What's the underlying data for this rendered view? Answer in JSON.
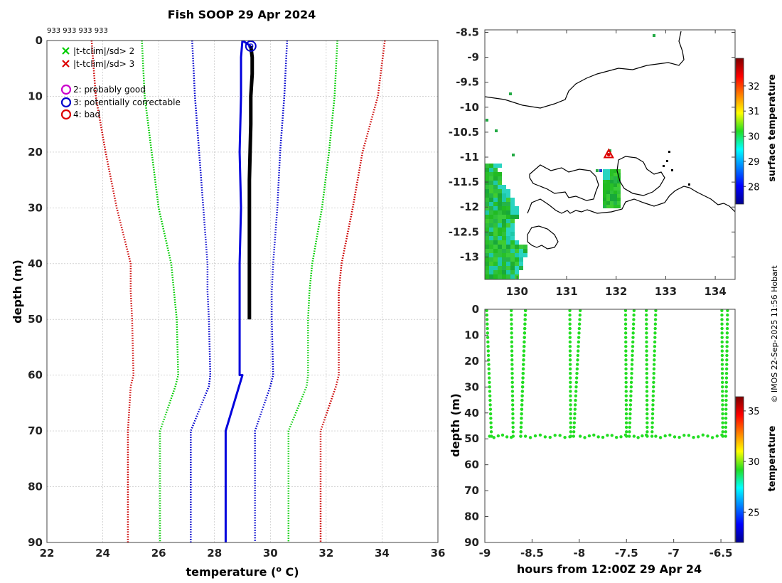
{
  "title": "Fish SOOP 29 Apr 2024",
  "id_label": "933 933 933 933",
  "copyright": "© IMOS 22-Sep-2025 11:56 Hobart",
  "colors": {
    "profile": "#000000",
    "clim_mean": "#0000dd",
    "sd1": "#0000cc",
    "sd2": "#00cc00",
    "sd3": "#cc0000",
    "flag_green": "#00cc00",
    "flag_red": "#dd0000",
    "flag_magenta": "#cc00cc",
    "flag_blue": "#0000cc",
    "land_green": "#22bb22",
    "coast": "#000000",
    "section_dots": "#22dd22"
  },
  "legend": {
    "items": [
      {
        "marker": "x",
        "color": "#00cc00",
        "label": "|t-tclim|/sd> 2"
      },
      {
        "marker": "x",
        "color": "#dd0000",
        "label": "|t-tclim|/sd> 3"
      },
      {
        "marker": "o",
        "color": "#cc00cc",
        "label": "2: probably good"
      },
      {
        "marker": "o",
        "color": "#0000cc",
        "label": "3: potentially correctable"
      },
      {
        "marker": "o",
        "color": "#dd0000",
        "label": "4: bad"
      }
    ]
  },
  "chart_data": [
    {
      "type": "line",
      "title": "Fish SOOP 29 Apr 2024",
      "xlabel": "temperature (o C)",
      "ylabel": "depth (m)",
      "xlim": [
        22,
        36
      ],
      "ylim": [
        90,
        0
      ],
      "xticks": [
        22,
        24,
        26,
        28,
        30,
        32,
        34,
        36
      ],
      "yticks": [
        0,
        10,
        20,
        30,
        40,
        50,
        60,
        70,
        80,
        90
      ],
      "grid": true,
      "series": [
        {
          "name": "profile",
          "color": "#000000",
          "style": "solid",
          "width": 5,
          "x": [
            29.3,
            29.35,
            29.35,
            29.3,
            29.3,
            29.25,
            29.25,
            29.25
          ],
          "y": [
            1,
            3,
            6,
            10,
            15,
            25,
            40,
            50
          ]
        },
        {
          "name": "climatology mean",
          "color": "#0000dd",
          "style": "solid",
          "width": 3,
          "x": [
            29.3,
            29.0,
            28.95,
            28.95,
            28.9,
            28.95,
            28.9,
            28.9,
            28.9,
            28.9,
            29.0,
            28.4,
            28.4,
            28.4
          ],
          "y": [
            1,
            0,
            3,
            10,
            20,
            30,
            40,
            50,
            60,
            60,
            60,
            70,
            80,
            90
          ]
        },
        {
          "name": "mean-1sd",
          "color": "#0000cc",
          "style": "dotted",
          "width": 2.5,
          "x": [
            27.2,
            27.3,
            27.45,
            27.6,
            27.75,
            27.75,
            27.8,
            27.85,
            27.8,
            27.15,
            27.15,
            27.15
          ],
          "y": [
            0,
            10,
            20,
            30,
            40,
            45,
            50,
            60,
            62,
            70,
            80,
            90
          ]
        },
        {
          "name": "mean+1sd",
          "color": "#0000cc",
          "style": "dotted",
          "width": 2.5,
          "x": [
            30.6,
            30.5,
            30.35,
            30.25,
            30.1,
            30.05,
            30.05,
            30.1,
            30.0,
            29.45,
            29.45,
            29.45
          ],
          "y": [
            0,
            10,
            20,
            30,
            40,
            45,
            50,
            60,
            62,
            70,
            80,
            90
          ]
        },
        {
          "name": "mean-2sd",
          "color": "#00cc00",
          "style": "dotted",
          "width": 2.5,
          "x": [
            25.4,
            25.5,
            25.75,
            26.0,
            26.45,
            26.55,
            26.65,
            26.7,
            26.6,
            26.05,
            26.05,
            26.05
          ],
          "y": [
            0,
            10,
            20,
            30,
            40,
            45,
            50,
            60,
            62,
            70,
            80,
            90
          ]
        },
        {
          "name": "mean+2sd",
          "color": "#00cc00",
          "style": "dotted",
          "width": 2.5,
          "x": [
            32.4,
            32.3,
            32.1,
            31.85,
            31.5,
            31.4,
            31.35,
            31.35,
            31.3,
            30.65,
            30.65,
            30.65
          ],
          "y": [
            0,
            10,
            20,
            30,
            40,
            45,
            50,
            60,
            62,
            70,
            80,
            90
          ]
        },
        {
          "name": "mean-3sd",
          "color": "#cc0000",
          "style": "dotted",
          "width": 2.5,
          "x": [
            23.6,
            23.75,
            24.1,
            24.5,
            25.0,
            25.0,
            25.05,
            25.1,
            25.0,
            24.9,
            24.9,
            24.9
          ],
          "y": [
            0,
            10,
            20,
            30,
            40,
            45,
            50,
            60,
            62,
            70,
            80,
            90
          ]
        },
        {
          "name": "mean+3sd",
          "color": "#cc0000",
          "style": "dotted",
          "width": 2.5,
          "x": [
            34.1,
            33.85,
            33.3,
            32.95,
            32.55,
            32.45,
            32.45,
            32.45,
            32.35,
            31.8,
            31.8,
            31.8
          ],
          "y": [
            0,
            10,
            20,
            30,
            40,
            45,
            50,
            60,
            62,
            70,
            80,
            90
          ]
        }
      ],
      "flag_marker": {
        "x": 29.3,
        "y": 1,
        "label": "3: potentially correctable"
      }
    },
    {
      "type": "heatmap",
      "xticks": [
        130,
        131,
        132,
        133,
        134
      ],
      "yticks": [
        -8.5,
        -9,
        -9.5,
        -10,
        -10.5,
        -11,
        -11.5,
        -12,
        -12.5,
        -13
      ],
      "xlim": [
        129.35,
        134.4
      ],
      "ylim": [
        -13.45,
        -8.45
      ],
      "colorbar": {
        "label": "surface temperature",
        "min": 27.3,
        "max": 33.1,
        "ticks": [
          28,
          29,
          30,
          31,
          32
        ]
      },
      "station": {
        "lon": 131.85,
        "lat": -10.95
      }
    },
    {
      "type": "scatter",
      "xlabel": "hours from 12:00Z 29 Apr 24",
      "ylabel": "depth (m)",
      "xlim": [
        -9,
        -6.35
      ],
      "ylim": [
        90,
        0
      ],
      "xticks": [
        -9,
        -8.5,
        -8,
        -7.5,
        -7,
        -6.5
      ],
      "yticks": [
        0,
        10,
        20,
        30,
        40,
        50,
        60,
        70,
        80,
        90
      ],
      "cast_windows": [
        {
          "t0": -8.98,
          "t1": -8.93,
          "t2": -8.62,
          "t3": -8.57
        },
        {
          "t0": -8.72,
          "t1": -8.7,
          "t2": -8.62,
          "t3": -8.57
        },
        {
          "t0": -8.1,
          "t1": -8.09,
          "t2": -8.06,
          "t3": -7.99
        },
        {
          "t0": -7.51,
          "t1": -7.5,
          "t2": -7.47,
          "t3": -7.42
        },
        {
          "t0": -7.29,
          "t1": -7.28,
          "t2": -7.23,
          "t3": -7.19
        },
        {
          "t0": -6.49,
          "t1": -6.48,
          "t2": -6.45,
          "t3": -6.43
        }
      ],
      "colorbar": {
        "label": "temperature",
        "min": 22,
        "max": 36.4,
        "ticks": [
          25,
          30,
          35
        ]
      }
    }
  ]
}
